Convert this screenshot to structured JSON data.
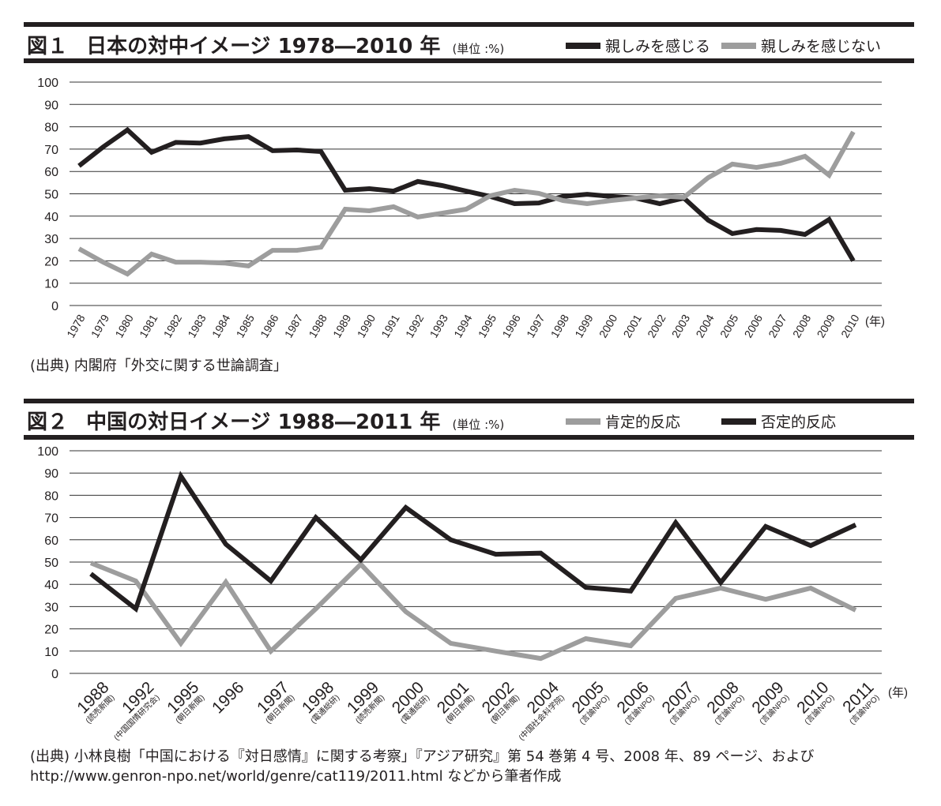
{
  "colors": {
    "black_series": "#231f20",
    "gray_series": "#9d9d9d",
    "grid": "#333333"
  },
  "figure1": {
    "number": "図１",
    "title": "日本の対中イメージ 1978―2010 年",
    "unit": "(単位 :%)",
    "legend": [
      "親しみを感じる",
      "親しみを感じない"
    ],
    "year_suffix": "(年)",
    "source": "(出典) 内閣府「外交に関する世論調査」"
  },
  "figure2": {
    "number": "図２",
    "title": "中国の対日イメージ 1988―2011 年",
    "unit": "(単位 :%)",
    "legend": [
      "肯定的反応",
      "否定的反応"
    ],
    "year_suffix": "(年)",
    "source_line1": "(出典) 小林良樹「中国における『対日感情』に関する考察」『アジア研究』第 54 巻第 4 号、2008 年、89 ページ、および",
    "source_line2": "http://www.genron-npo.net/world/genre/cat119/2011.html などから筆者作成"
  },
  "chart_data": [
    {
      "type": "line",
      "title": "日本の対中イメージ 1978―2010 年",
      "ylabel": "(単位 :%)",
      "xlabel": "(年)",
      "ylim": [
        0,
        100
      ],
      "yticks": [
        0,
        10,
        20,
        30,
        40,
        50,
        60,
        70,
        80,
        90,
        100
      ],
      "grid": true,
      "legend_position": "top-right",
      "categories": [
        "1978",
        "1979",
        "1980",
        "1981",
        "1982",
        "1983",
        "1984",
        "1985",
        "1986",
        "1987",
        "1988",
        "1989",
        "1990",
        "1991",
        "1992",
        "1993",
        "1994",
        "1995",
        "1996",
        "1997",
        "1998",
        "1999",
        "2000",
        "2001",
        "2002",
        "2003",
        "2004",
        "2005",
        "2006",
        "2007",
        "2008",
        "2009",
        "2010"
      ],
      "series": [
        {
          "name": "親しみを感じる",
          "color": "#231f20",
          "values": [
            62.5,
            71,
            78.6,
            68.6,
            73,
            72.7,
            74.6,
            75.6,
            69.3,
            69.6,
            68.9,
            51.6,
            52.3,
            51.2,
            55.5,
            53.7,
            51.2,
            48.8,
            45.6,
            45.9,
            48.8,
            49.8,
            48.8,
            48.1,
            45.6,
            48.1,
            38.2,
            32.2,
            34,
            33.6,
            31.8,
            38.5,
            20
          ]
        },
        {
          "name": "親しみを感じない",
          "color": "#9d9d9d",
          "values": [
            25.4,
            19.4,
            14.1,
            23,
            19.4,
            19.4,
            19,
            17.7,
            24.7,
            24.7,
            26.1,
            43.1,
            42.4,
            44.2,
            39.6,
            41.3,
            43.1,
            49.1,
            51.6,
            50.2,
            47,
            45.6,
            47,
            48.1,
            49.1,
            48.4,
            57.2,
            63.3,
            61.8,
            63.6,
            66.8,
            58.3,
            77.7
          ]
        }
      ]
    },
    {
      "type": "line",
      "title": "中国の対日イメージ 1988―2011 年",
      "ylabel": "(単位 :%)",
      "xlabel": "(年)",
      "ylim": [
        0,
        100
      ],
      "yticks": [
        0,
        10,
        20,
        30,
        40,
        50,
        60,
        70,
        80,
        90,
        100
      ],
      "grid": true,
      "legend_position": "top-right",
      "categories": [
        "1988",
        "1992",
        "1995",
        "1996",
        "1997",
        "1998",
        "1999",
        "2000",
        "2001",
        "2002",
        "2004",
        "2005",
        "2006",
        "2007",
        "2008",
        "2009",
        "2010",
        "2011"
      ],
      "category_sources": [
        "(読売新聞)",
        "(中国国情研究会)",
        "(朝日新聞)",
        "",
        "(朝日新聞)",
        "(電通総研)",
        "(読売新聞)",
        "(電通総研)",
        "(朝日新聞)",
        "(朝日新聞)",
        "(中国社会科学院)",
        "(言論NPO)",
        "(言論NPO)",
        "(言論NPO)",
        "(言論NPO)",
        "(言論NPO)",
        "(言論NPO)",
        "(言論NPO)"
      ],
      "series": [
        {
          "name": "肯定的反応",
          "color": "#9d9d9d",
          "values": [
            49.6,
            41.5,
            13.5,
            41,
            10,
            29,
            49,
            27.7,
            13.5,
            10,
            6.7,
            15.6,
            12.4,
            33.7,
            38.3,
            33.3,
            38.3,
            28.4
          ]
        },
        {
          "name": "否定的反応",
          "color": "#231f20",
          "values": [
            44.7,
            29,
            88.6,
            58,
            41.5,
            70,
            51,
            74.5,
            60,
            53.5,
            54,
            38.6,
            37,
            67.7,
            40.8,
            66,
            57.4,
            66.7
          ]
        }
      ]
    }
  ]
}
